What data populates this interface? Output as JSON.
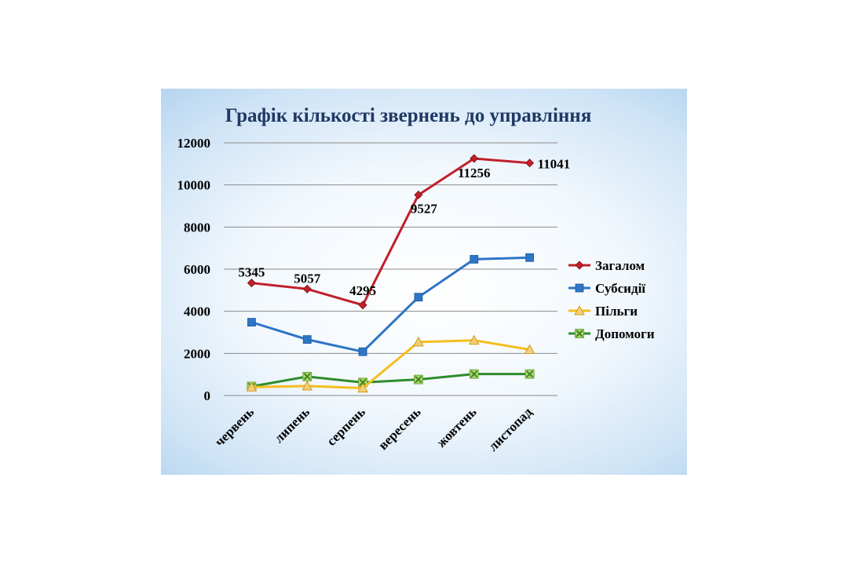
{
  "chart_data": {
    "type": "line",
    "title": "Графік кількості звернень до управління",
    "categories": [
      "червень",
      "липень",
      "серпень",
      "вересень",
      "жовтень",
      "листопад"
    ],
    "ylim": [
      0,
      12000
    ],
    "yticks": [
      0,
      2000,
      4000,
      6000,
      8000,
      10000,
      12000
    ],
    "grid": true,
    "legend": "right",
    "series": [
      {
        "name": "Загалом",
        "color": "#c0202a",
        "marker": "diamond",
        "values": [
          5345,
          5057,
          4295,
          9527,
          11256,
          11041
        ],
        "labels": [
          "5345",
          "5057",
          "4295",
          "9527",
          "11256",
          "11041"
        ]
      },
      {
        "name": "Субсидії",
        "color": "#2e75c6",
        "marker": "square",
        "values": [
          3480,
          2660,
          2080,
          4670,
          6470,
          6550
        ]
      },
      {
        "name": "Пільги",
        "color": "#f5bd1f",
        "marker": "triangle",
        "values": [
          400,
          450,
          350,
          2540,
          2620,
          2180
        ]
      },
      {
        "name": "Допомоги",
        "color": "#2d8c2d",
        "marker": "x",
        "values": [
          430,
          900,
          620,
          760,
          1020,
          1020
        ]
      }
    ]
  }
}
